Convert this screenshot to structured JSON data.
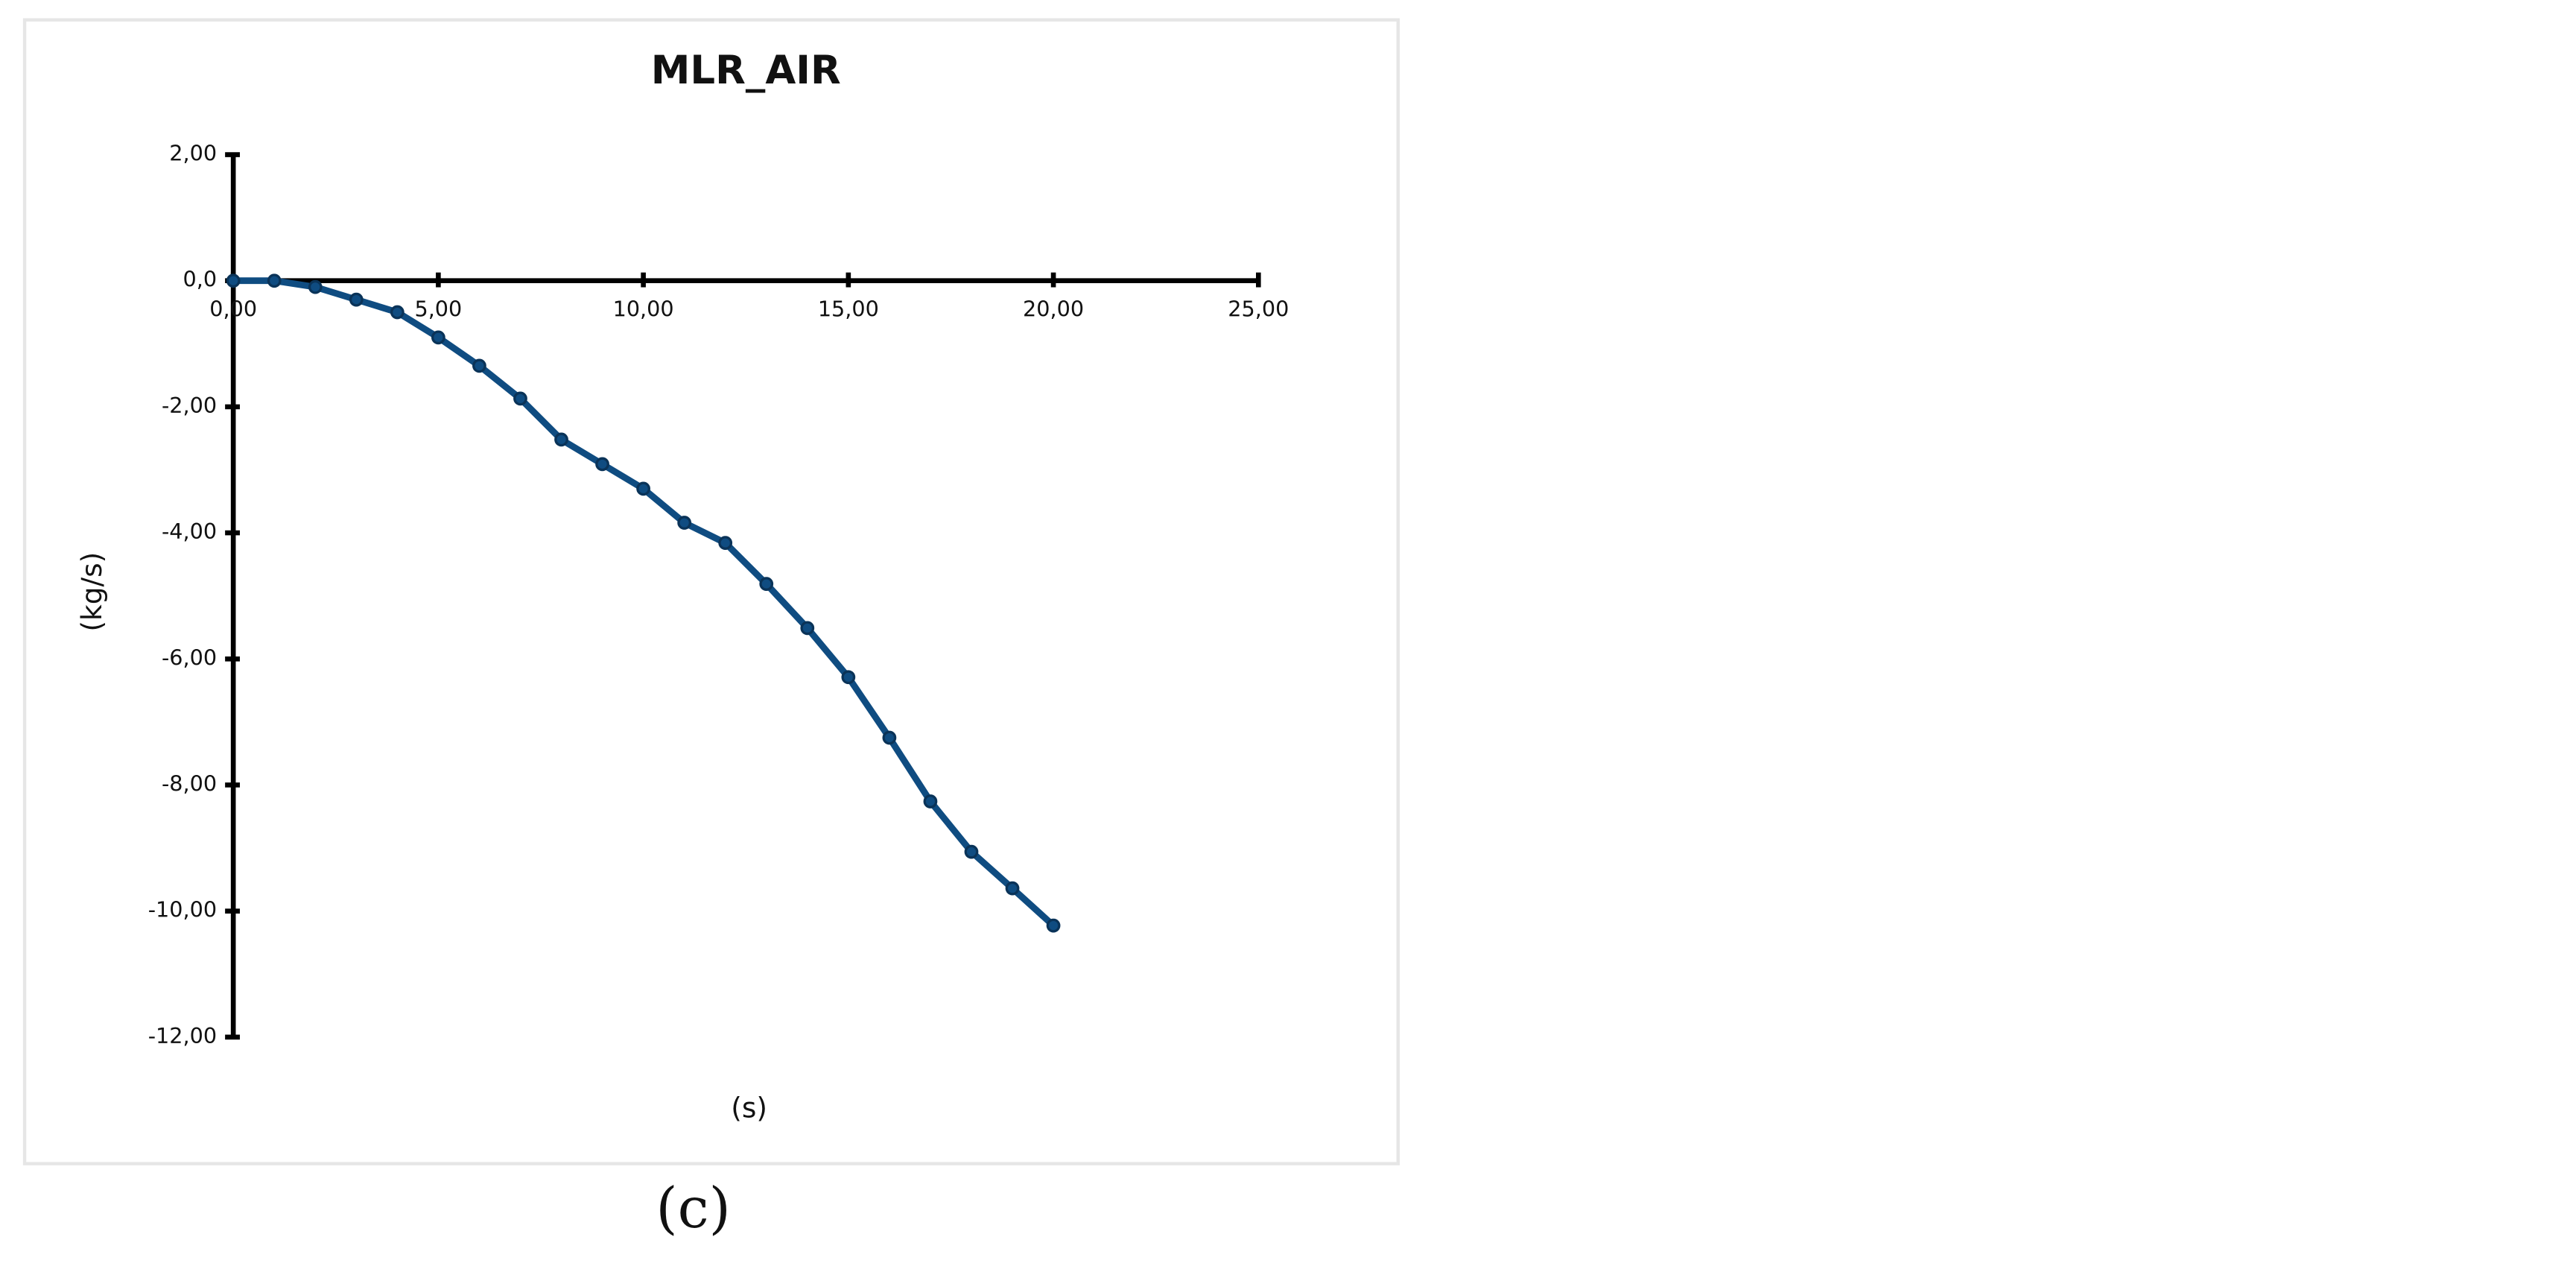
{
  "chart_data": {
    "type": "line",
    "title": "MLR_AIR",
    "x_label": "(s)",
    "y_label": "(kg/s)",
    "x": [
      0,
      1,
      2,
      3,
      4,
      5,
      6,
      7,
      8,
      9,
      10,
      11,
      12,
      13,
      14,
      15,
      16,
      17,
      18,
      19,
      20
    ],
    "series": [
      {
        "color": "#0f4c81",
        "values": [
          0,
          0,
          -0.1,
          -0.3,
          -0.5,
          -0.9,
          -1.35,
          -1.87,
          -2.52,
          -2.91,
          -3.3,
          -3.84,
          -4.16,
          -4.81,
          -5.51,
          -6.29,
          -7.25,
          -8.26,
          -9.06,
          -9.64,
          -10.23
        ]
      }
    ],
    "xlim": [
      0,
      25
    ],
    "ylim": [
      -12,
      2
    ],
    "xticks": [
      {
        "value": 0,
        "label": "0,00"
      },
      {
        "value": 5,
        "label": "5,00"
      },
      {
        "value": 10,
        "label": "10,00"
      },
      {
        "value": 15,
        "label": "15,00"
      },
      {
        "value": 20,
        "label": "20,00"
      },
      {
        "value": 25,
        "label": "25,00"
      }
    ],
    "yticks": [
      {
        "value": 2,
        "label": "2,00"
      },
      {
        "value": 0,
        "label": "0,0"
      },
      {
        "value": -2,
        "label": "-2,00"
      },
      {
        "value": -4,
        "label": "-4,00"
      },
      {
        "value": -6,
        "label": "-6,00"
      },
      {
        "value": -8,
        "label": "-8,00"
      },
      {
        "value": -10,
        "label": "-10,00"
      },
      {
        "value": -12,
        "label": "-12,00"
      }
    ],
    "markers": true
  },
  "caption": "(c)"
}
